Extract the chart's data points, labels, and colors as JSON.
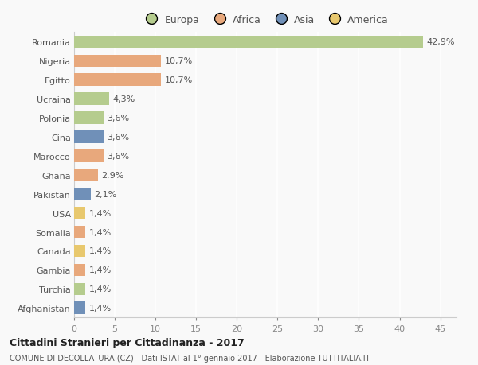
{
  "countries": [
    "Romania",
    "Nigeria",
    "Egitto",
    "Ucraina",
    "Polonia",
    "Cina",
    "Marocco",
    "Ghana",
    "Pakistan",
    "USA",
    "Somalia",
    "Canada",
    "Gambia",
    "Turchia",
    "Afghanistan"
  ],
  "values": [
    42.9,
    10.7,
    10.7,
    4.3,
    3.6,
    3.6,
    3.6,
    2.9,
    2.1,
    1.4,
    1.4,
    1.4,
    1.4,
    1.4,
    1.4
  ],
  "labels": [
    "42,9%",
    "10,7%",
    "10,7%",
    "4,3%",
    "3,6%",
    "3,6%",
    "3,6%",
    "2,9%",
    "2,1%",
    "1,4%",
    "1,4%",
    "1,4%",
    "1,4%",
    "1,4%",
    "1,4%"
  ],
  "colors": [
    "#b5cc8e",
    "#e8a87c",
    "#e8a87c",
    "#b5cc8e",
    "#b5cc8e",
    "#7090b8",
    "#e8a87c",
    "#e8a87c",
    "#7090b8",
    "#e8c86e",
    "#e8a87c",
    "#e8c86e",
    "#e8a87c",
    "#b5cc8e",
    "#7090b8"
  ],
  "legend_labels": [
    "Europa",
    "Africa",
    "Asia",
    "America"
  ],
  "legend_colors": [
    "#b5cc8e",
    "#e8a87c",
    "#7090b8",
    "#e8c86e"
  ],
  "title": "Cittadini Stranieri per Cittadinanza - 2017",
  "subtitle": "COMUNE DI DECOLLATURA (CZ) - Dati ISTAT al 1° gennaio 2017 - Elaborazione TUTTITALIA.IT",
  "xlim": [
    0,
    47
  ],
  "xticks": [
    0,
    5,
    10,
    15,
    20,
    25,
    30,
    35,
    40,
    45
  ],
  "background_color": "#f9f9f9",
  "grid_color": "#ffffff",
  "bar_height": 0.65,
  "label_fontsize": 8,
  "ytick_fontsize": 8,
  "xtick_fontsize": 8
}
